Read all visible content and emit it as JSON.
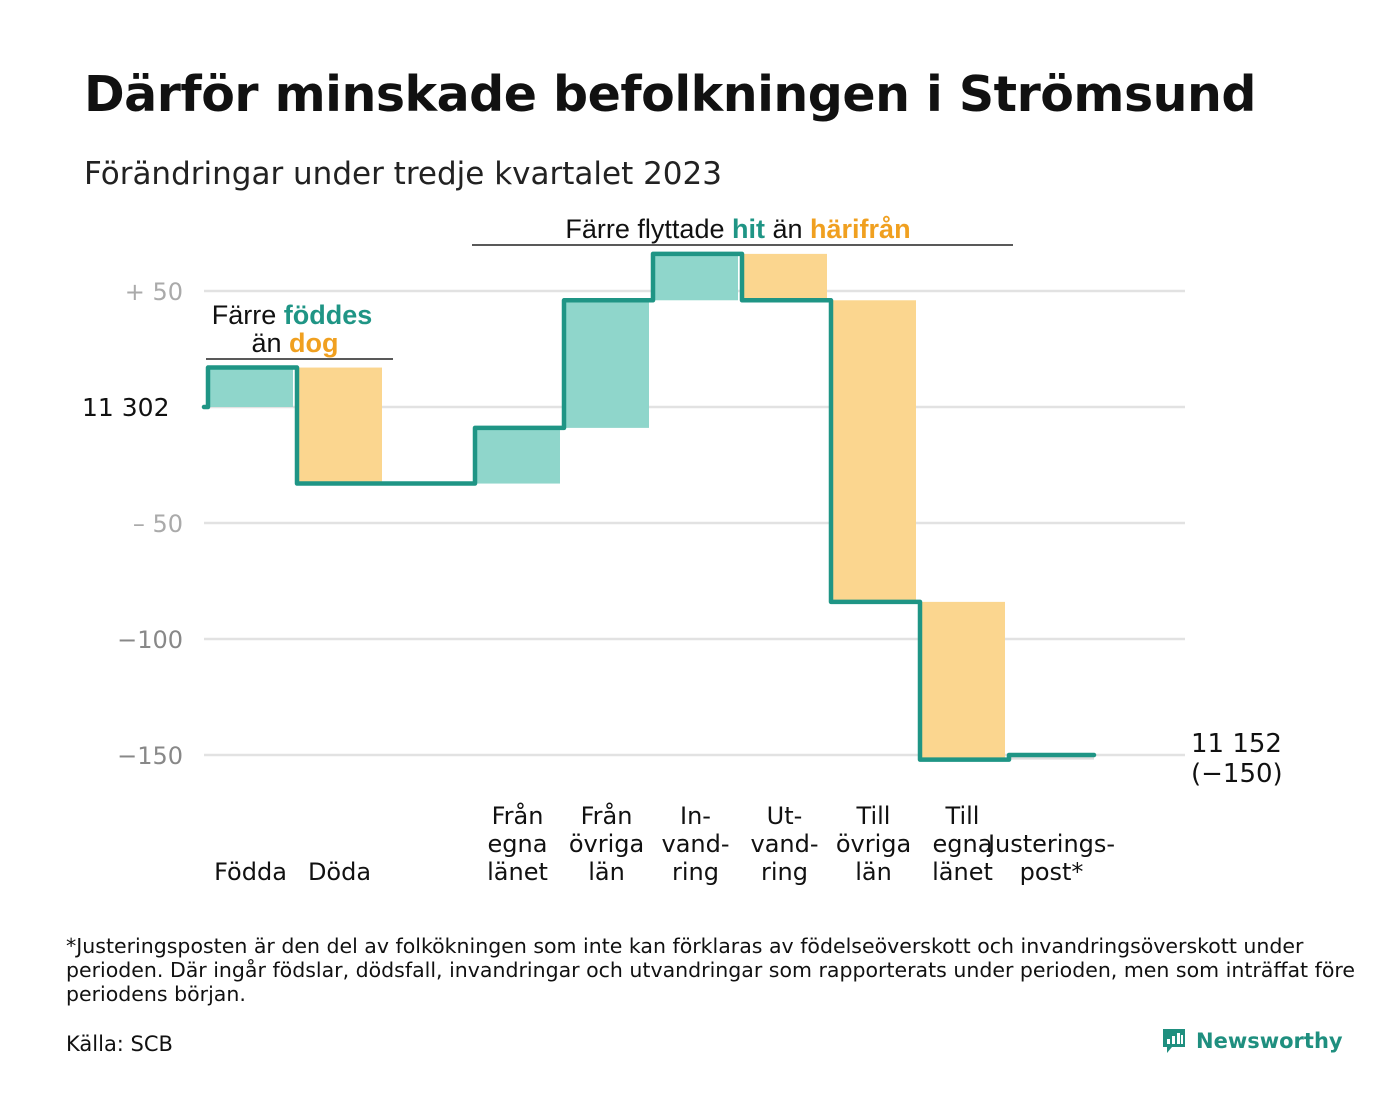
{
  "title": "Därför minskade befolkningen i Strömsund",
  "subtitle": "Förändringar under tredje kvartalet 2023",
  "chart_data": {
    "type": "waterfall",
    "start_value": 11302,
    "start_label": "11  302",
    "end_label_lines": [
      "11 152",
      "(−150)"
    ],
    "ylim": [
      -165,
      62
    ],
    "y_ticks": [
      {
        "value": 50,
        "label": "+  50",
        "color": "#aaaaaa"
      },
      {
        "value": 0,
        "label": "",
        "color": "#aaaaaa"
      },
      {
        "value": -50,
        "label": "–  50",
        "color": "#aaaaaa"
      },
      {
        "value": -100,
        "label": "−100",
        "color": "#888888"
      },
      {
        "value": -150,
        "label": "−150",
        "color": "#888888"
      }
    ],
    "steps": [
      {
        "label_lines": [
          "Födda"
        ],
        "value": 17,
        "color": "#8fd6cb"
      },
      {
        "label_lines": [
          "Döda"
        ],
        "value": -50,
        "color": "#fbd68f"
      },
      {
        "label_lines": [],
        "value": 0,
        "color": "#ffffff"
      },
      {
        "label_lines": [
          "Från",
          "egna",
          "länet"
        ],
        "value": 24,
        "color": "#8fd6cb"
      },
      {
        "label_lines": [
          "Från",
          "övriga",
          "län"
        ],
        "value": 55,
        "color": "#8fd6cb"
      },
      {
        "label_lines": [
          "In-",
          "vand-",
          "ring"
        ],
        "value": 20,
        "color": "#8fd6cb"
      },
      {
        "label_lines": [
          "Ut-",
          "vand-",
          "ring"
        ],
        "value": -20,
        "color": "#fbd68f"
      },
      {
        "label_lines": [
          "Till",
          "övriga",
          "län"
        ],
        "value": -130,
        "color": "#fbd68f"
      },
      {
        "label_lines": [
          "Till",
          "egna",
          "länet"
        ],
        "value": -68,
        "color": "#fbd68f"
      },
      {
        "label_lines": [
          "Justerings-",
          "post*"
        ],
        "value": 2,
        "color": "#dddddd"
      }
    ],
    "annotations": [
      {
        "parts": [
          {
            "text": "Färre ",
            "style": "plain"
          },
          {
            "text": "föddes",
            "style": "teal"
          }
        ],
        "parts2": [
          {
            "text": "än ",
            "style": "plain"
          },
          {
            "text": "dog",
            "style": "orange"
          }
        ]
      },
      {
        "parts": [
          {
            "text": "Färre flyttade ",
            "style": "plain"
          },
          {
            "text": "hit",
            "style": "teal"
          },
          {
            "text": " än ",
            "style": "plain"
          },
          {
            "text": "härifrån",
            "style": "orange"
          }
        ],
        "parts2": []
      }
    ],
    "colors": {
      "line": "#1f9585",
      "increase": "#8fd6cb",
      "decrease": "#fbd68f",
      "grid": "#e2e2e2",
      "teal_text": "#1f9585",
      "orange_text": "#f0a020"
    }
  },
  "footnote": "*Justeringsposten är den del av folkökningen som inte kan förklaras av födelseöverskott och invandringsöverskott under perioden. Där ingår födslar, dödsfall, invandringar och utvandringar som rapporterats under perioden, men som inträffat före periodens början.",
  "source": "Källa: SCB",
  "logo": {
    "text": "Newsworthy",
    "icon": "newsworthy-logo-icon",
    "color": "#1f8f7f"
  }
}
